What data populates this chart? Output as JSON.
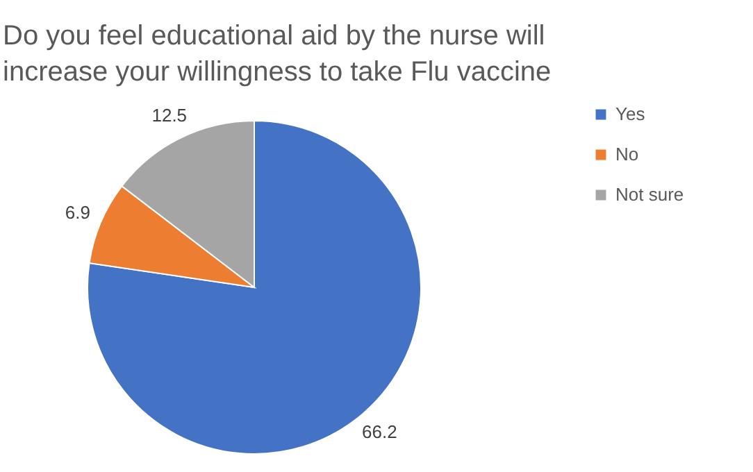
{
  "chart_data": {
    "type": "pie",
    "title": "Do you feel educational aid by the nurse will increase your willingness to take Flu vaccine",
    "categories": [
      "Yes",
      "No",
      "Not sure"
    ],
    "values": [
      66.2,
      6.9,
      12.5
    ],
    "colors": [
      "#4472c4",
      "#ed7d31",
      "#a5a5a5"
    ],
    "data_labels": true,
    "legend": "right"
  }
}
